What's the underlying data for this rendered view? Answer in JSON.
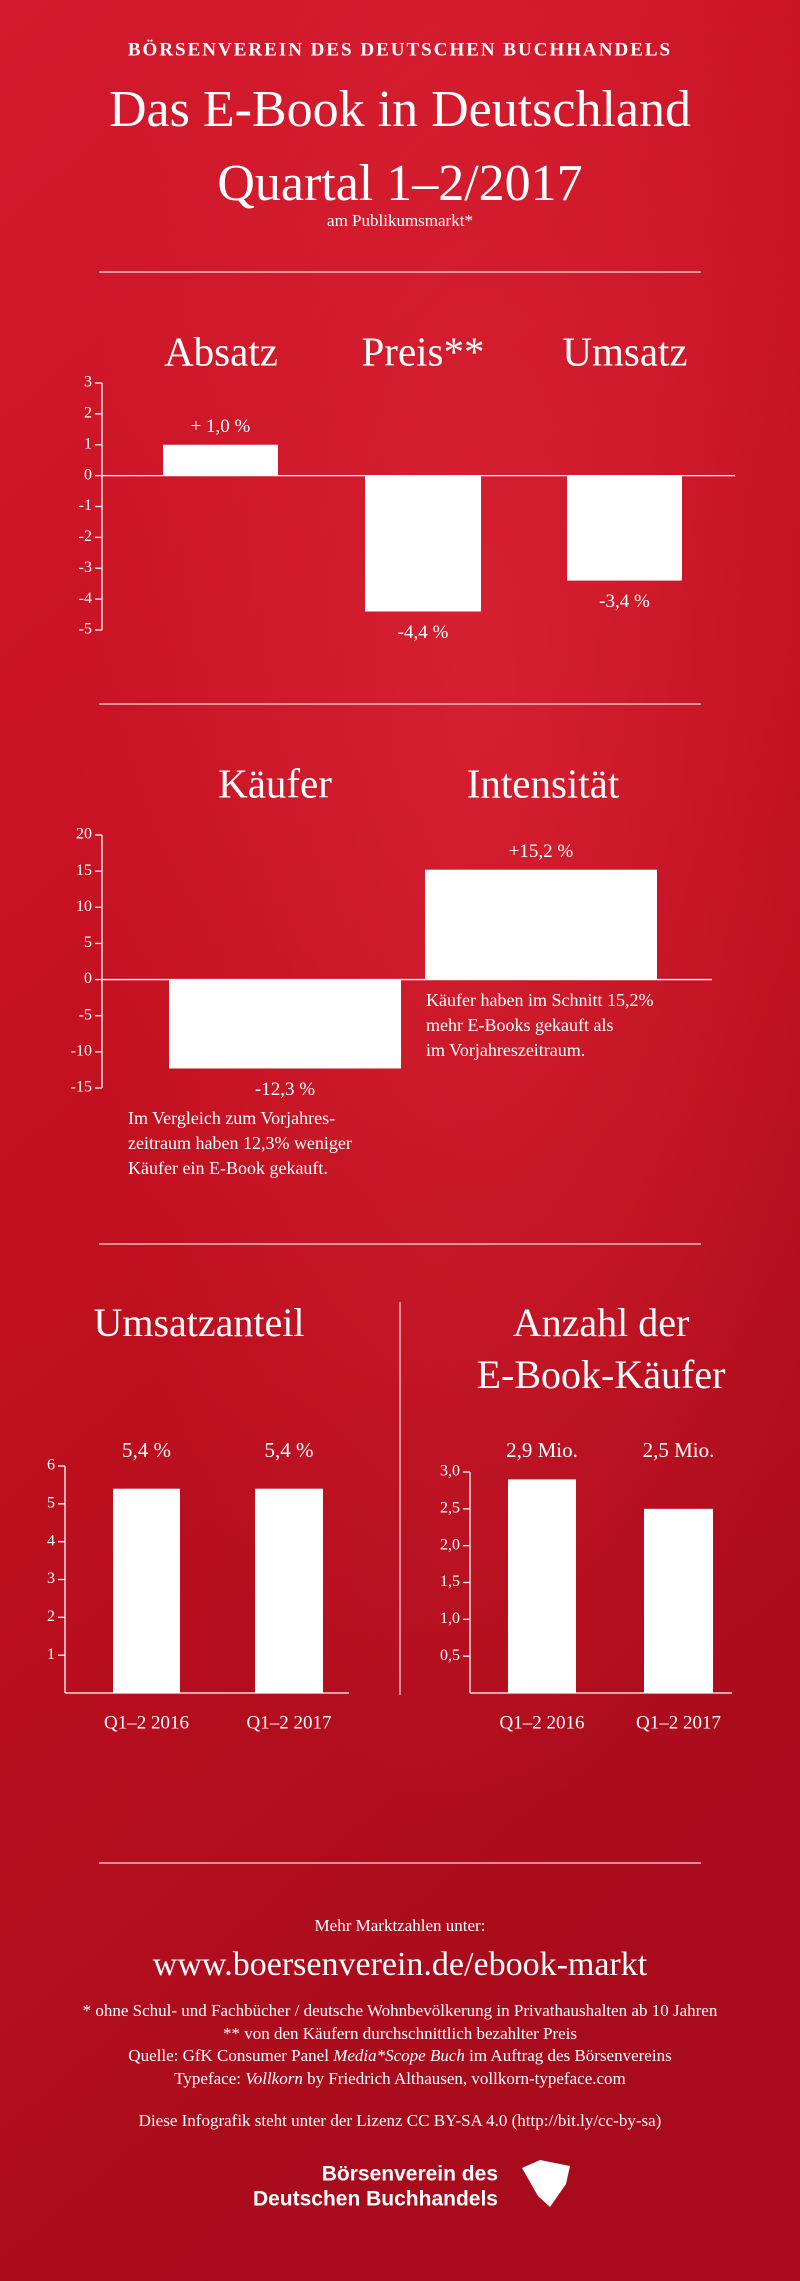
{
  "header": {
    "org": "BÖRSENVEREIN DES DEUTSCHEN BUCHHANDELS",
    "title": "Das E-Book in Deutschland",
    "subtitle": "Quartal 1–2/2017",
    "note": "am Publikumsmarkt*"
  },
  "chart_data": [
    {
      "type": "bar",
      "categories": [
        "Absatz",
        "Preis**",
        "Umsatz"
      ],
      "values": [
        1.0,
        -4.4,
        -3.4
      ],
      "value_labels": [
        "+ 1,0 %",
        "-4,4 %",
        "-3,4 %"
      ],
      "color": "#ffffff",
      "ylim": [
        -5,
        3
      ],
      "yticks": [
        3,
        2,
        1,
        0,
        -1,
        -2,
        -3,
        -4,
        -5
      ]
    },
    {
      "type": "bar",
      "categories": [
        "Käufer",
        "Intensität"
      ],
      "values": [
        -12.3,
        15.2
      ],
      "value_labels": [
        "-12,3 %",
        "+15,2 %"
      ],
      "annotations": [
        [
          "Im Vergleich zum Vorjahres-",
          "zeitraum haben 12,3% weniger",
          "Käufer ein E-Book gekauft."
        ],
        [
          "Käufer haben im Schnitt 15,2%",
          "mehr E-Books gekauft als",
          "im Vorjahreszeitraum."
        ]
      ],
      "color": "#ffffff",
      "ylim": [
        -15,
        20
      ],
      "yticks": [
        20,
        15,
        10,
        5,
        0,
        -5,
        -10,
        -15
      ]
    },
    {
      "type": "bar",
      "title": [
        "Umsatzanteil"
      ],
      "categories": [
        "Q1–2 2016",
        "Q1–2 2017"
      ],
      "values": [
        5.4,
        5.4
      ],
      "value_labels": [
        "5,4 %",
        "5,4 %"
      ],
      "color": "#ffffff",
      "ylim": [
        0,
        6
      ],
      "yticks": [
        6,
        5,
        4,
        3,
        2,
        1
      ]
    },
    {
      "type": "bar",
      "title": [
        "Anzahl der",
        "E-Book-Käufer"
      ],
      "categories": [
        "Q1–2 2016",
        "Q1–2 2017"
      ],
      "values": [
        2.9,
        2.5
      ],
      "value_labels": [
        "2,9 Mio.",
        "2,5 Mio."
      ],
      "color": "#ffffff",
      "ylim": [
        0,
        3
      ],
      "yticks": [
        {
          "value": 3,
          "label": "3,0"
        },
        {
          "value": 2.5,
          "label": "2,5"
        },
        {
          "value": 2,
          "label": "2,0"
        },
        {
          "value": 1.5,
          "label": "1,5"
        },
        {
          "value": 1,
          "label": "1,0"
        },
        {
          "value": 0.5,
          "label": "0,5"
        }
      ]
    }
  ],
  "footer": {
    "more": "Mehr Marktzahlen unter:",
    "url": "www.boersenverein.de/ebook-markt",
    "note1": "* ohne Schul- und Fachbücher / deutsche Wohnbevölkerung in Privathaushalten ab 10 Jahren",
    "note2": "** von den Käufern durchschnittlich bezahlter Preis",
    "source": [
      "Quelle: GfK Consumer Panel ",
      "Media*Scope Buch",
      " im Auftrag des Börsenvereins"
    ],
    "typeface": [
      "Typeface: ",
      "Vollkorn",
      " by Friedrich Althausen, vollkorn-typeface.com"
    ],
    "license": "Diese Infografik steht unter der Lizenz CC BY-SA 4.0 (http://bit.ly/cc-by-sa)",
    "logo": [
      "Börsenverein des",
      "Deutschen Buchhandels"
    ]
  }
}
